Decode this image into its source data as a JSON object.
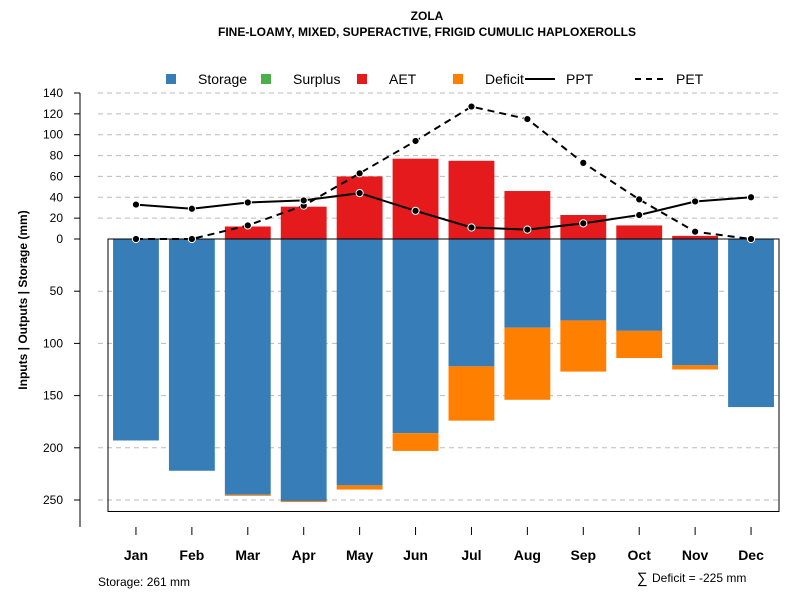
{
  "chart_data": {
    "type": "bar",
    "title": "ZOLA",
    "subtitle": "FINE-LOAMY, MIXED, SUPERACTIVE, FRIGID CUMULIC HAPLOXEROLLS",
    "ylabel": "Inputs | Outputs | Storage    (mm)",
    "categories": [
      "Jan",
      "Feb",
      "Mar",
      "Apr",
      "May",
      "Jun",
      "Jul",
      "Aug",
      "Sep",
      "Oct",
      "Nov",
      "Dec"
    ],
    "upper_ticks": [
      "0",
      "20",
      "40",
      "60",
      "80",
      "100",
      "120",
      "140"
    ],
    "upper_tick_values": [
      0,
      20,
      40,
      60,
      80,
      100,
      120,
      140
    ],
    "lower_ticks": [
      "50",
      "100",
      "150",
      "200",
      "250"
    ],
    "lower_tick_values": [
      50,
      100,
      150,
      200,
      250
    ],
    "upper_ylim": [
      0,
      140
    ],
    "lower_ylim": [
      0,
      261
    ],
    "legend": [
      {
        "label": "Storage",
        "kind": "box",
        "color": "#377EB8"
      },
      {
        "label": "Surplus",
        "kind": "box",
        "color": "#4DAF4A"
      },
      {
        "label": "AET",
        "kind": "box",
        "color": "#E41A1C"
      },
      {
        "label": "Deficit",
        "kind": "box",
        "color": "#FF7F00"
      },
      {
        "label": "PPT",
        "kind": "solid",
        "color": "#000000"
      },
      {
        "label": "PET",
        "kind": "dashed",
        "color": "#000000"
      }
    ],
    "series": [
      {
        "name": "AET",
        "color": "#E41A1C",
        "values": [
          0,
          0,
          12,
          31,
          60,
          77,
          75,
          46,
          23,
          13,
          3,
          0
        ]
      },
      {
        "name": "Storage",
        "color": "#377EB8",
        "values": [
          193,
          222,
          245,
          251,
          236,
          186,
          122,
          85,
          78,
          88,
          121,
          161
        ]
      },
      {
        "name": "Deficit",
        "color": "#FF7F00",
        "values": [
          0,
          0,
          1,
          1,
          4,
          17,
          52,
          69,
          49,
          26,
          4,
          0
        ]
      },
      {
        "name": "Surplus",
        "color": "#4DAF4A",
        "values": [
          0,
          0,
          0,
          0,
          0,
          0,
          0,
          0,
          0,
          0,
          0,
          0
        ]
      },
      {
        "name": "PPT",
        "color": "#000000",
        "values": [
          33,
          29,
          35,
          37,
          44,
          27,
          11,
          9,
          15,
          23,
          36,
          40
        ]
      },
      {
        "name": "PET",
        "color": "#000000",
        "values": [
          0,
          0,
          13,
          32,
          63,
          94,
          127,
          115,
          73,
          38,
          7,
          0
        ]
      }
    ]
  },
  "footer": {
    "storage_note": "Storage: 261 mm",
    "sigma": "∑",
    "deficit_note": "Deficit = -225 mm"
  }
}
